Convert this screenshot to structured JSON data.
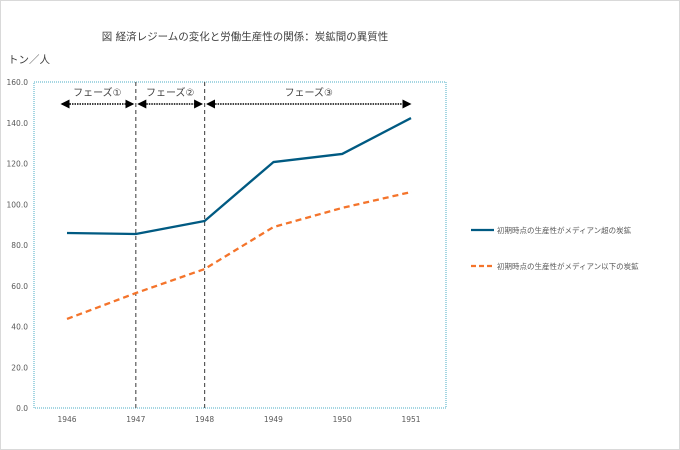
{
  "chart_data": {
    "type": "line",
    "title": "図 経済レジームの変化と労働生産性の関係：炭鉱間の異質性",
    "ylabel": "トン／人",
    "xlabel": "",
    "categories": [
      "1946",
      "1947",
      "1948",
      "1949",
      "1950",
      "1951"
    ],
    "ylim": [
      0,
      160
    ],
    "yticks": [
      "0.0",
      "20.0",
      "40.0",
      "60.0",
      "80.0",
      "100.0",
      "120.0",
      "140.0",
      "160.0"
    ],
    "grid": false,
    "legend_placement": "right",
    "series": [
      {
        "name": "初期時点の生産性がメディアン超の炭鉱",
        "values": [
          85.9,
          85.4,
          91.8,
          120.7,
          124.7,
          142.3
        ],
        "color": "#005a82",
        "dash": "solid"
      },
      {
        "name": "初期時点の生産性がメディアン以下の炭鉱",
        "values": [
          43.7,
          56.4,
          68.2,
          88.8,
          98.2,
          106.0
        ],
        "color": "#f4742b",
        "dash": "dashed"
      }
    ],
    "annotations": {
      "phase_boundaries": [
        "1947",
        "1948"
      ],
      "phases": [
        {
          "label": "フェーズ①",
          "from": "1946",
          "to": "1947"
        },
        {
          "label": "フェーズ②",
          "from": "1947",
          "to": "1948"
        },
        {
          "label": "フェーズ③",
          "from": "1948",
          "to": "1951"
        }
      ]
    },
    "plot_border_color": "#4bacc6"
  }
}
